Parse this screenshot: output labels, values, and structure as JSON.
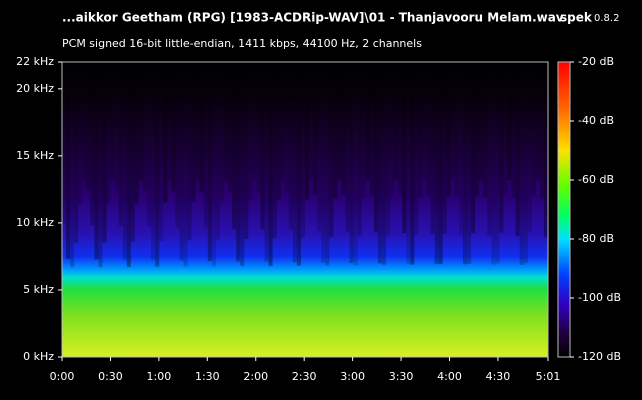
{
  "chart_data": {
    "type": "spectrogram",
    "title": "...aikkor Geetham (RPG) [1983-ACDRip-WAV]\\01 - Thanjavooru Melam.wav",
    "app": "spek",
    "version": "0.8.2",
    "subtitle": "PCM signed 16-bit little-endian, 1411 kbps, 44100 Hz, 2 channels",
    "ylim": [
      0,
      22
    ],
    "yticks": [
      {
        "value": 0,
        "label": "0 kHz"
      },
      {
        "value": 5,
        "label": "5 kHz"
      },
      {
        "value": 10,
        "label": "10 kHz"
      },
      {
        "value": 15,
        "label": "15 kHz"
      },
      {
        "value": 20,
        "label": "20 kHz"
      },
      {
        "value": 22,
        "label": "22 kHz"
      }
    ],
    "xlim": [
      0,
      301
    ],
    "xticks": [
      {
        "value": 0,
        "label": "0:00"
      },
      {
        "value": 30,
        "label": "0:30"
      },
      {
        "value": 60,
        "label": "1:00"
      },
      {
        "value": 90,
        "label": "1:30"
      },
      {
        "value": 120,
        "label": "2:00"
      },
      {
        "value": 150,
        "label": "2:30"
      },
      {
        "value": 180,
        "label": "3:00"
      },
      {
        "value": 210,
        "label": "3:30"
      },
      {
        "value": 240,
        "label": "4:00"
      },
      {
        "value": 270,
        "label": "4:30"
      },
      {
        "value": 301,
        "label": "5:01"
      }
    ],
    "colorbar": {
      "lim": [
        -120,
        -20
      ],
      "ticks": [
        {
          "value": -20,
          "label": "-20 dB"
        },
        {
          "value": -40,
          "label": "-40 dB"
        },
        {
          "value": -60,
          "label": "-60 dB"
        },
        {
          "value": -80,
          "label": "-80 dB"
        },
        {
          "value": -100,
          "label": "-100 dB"
        },
        {
          "value": -120,
          "label": "-120 dB"
        }
      ]
    }
  }
}
